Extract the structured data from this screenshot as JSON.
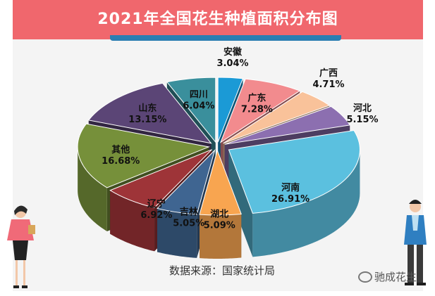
{
  "header": {
    "title": "2021年全国花生种植面积分布图"
  },
  "footer": {
    "source": "数据来源：国家统计局",
    "watermark": "驰成花生"
  },
  "chart_data": {
    "type": "pie",
    "style": "3d-exploded",
    "title": "2021年全国花生种植面积分布图",
    "slices": [
      {
        "name": "安徽",
        "value": 3.04,
        "label": "3.04%",
        "color": "#1b9ad6"
      },
      {
        "name": "广东",
        "value": 7.28,
        "label": "7.28%",
        "color": "#f28b8e"
      },
      {
        "name": "广西",
        "value": 4.71,
        "label": "4.71%",
        "color": "#f9c29a"
      },
      {
        "name": "河北",
        "value": 5.15,
        "label": "5.15%",
        "color": "#8c6fb0"
      },
      {
        "name": "河南",
        "value": 26.91,
        "label": "26.91%",
        "color": "#5bc0df"
      },
      {
        "name": "湖北",
        "value": 5.09,
        "label": "5.09%",
        "color": "#f8a550"
      },
      {
        "name": "吉林",
        "value": 5.05,
        "label": "5.05%",
        "color": "#3f6591"
      },
      {
        "name": "辽宁",
        "value": 6.92,
        "label": "6.92%",
        "color": "#9e3438"
      },
      {
        "name": "其他",
        "value": 16.68,
        "label": "16.68%",
        "color": "#76903a"
      },
      {
        "name": "山东",
        "value": 13.15,
        "label": "13.15%",
        "color": "#5b4576"
      },
      {
        "name": "四川",
        "value": 6.04,
        "label": "6.04%",
        "color": "#3a8f9c"
      }
    ]
  }
}
